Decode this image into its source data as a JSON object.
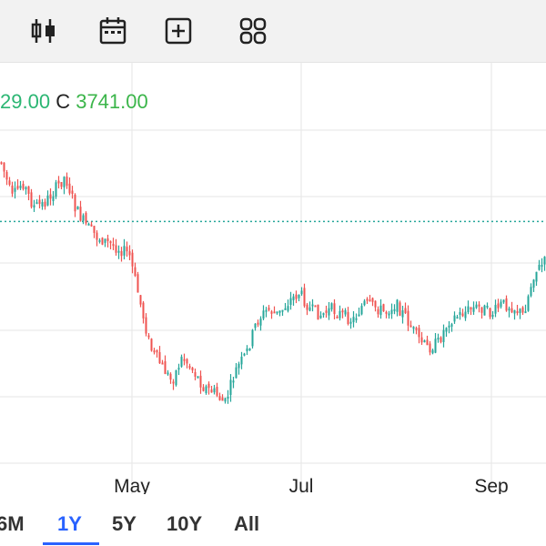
{
  "toolbar": {
    "icons": [
      "candlestick-icon",
      "calendar-icon",
      "add-icon",
      "grid-icon"
    ]
  },
  "ohlc_readout": {
    "low_value": "29.00",
    "close_label": "C",
    "close_value": "3741.00"
  },
  "x_axis_labels": [
    "May",
    "Jul",
    "Sep"
  ],
  "period_tabs": [
    "6M",
    "1Y",
    "5Y",
    "10Y",
    "All"
  ],
  "selected_period": "1Y",
  "colors": {
    "up": "#26a69a",
    "down": "#ef5350",
    "accent": "#2962ff",
    "reference_line": "#26a69a",
    "grid": "#e6e6e6"
  },
  "chart_data": {
    "type": "candlestick",
    "x_ticks": [
      "May",
      "Jul",
      "Sep"
    ],
    "reference_level": 0.28,
    "price_trend": [
      0.05,
      0.18,
      0.12,
      0.21,
      0.2,
      0.15,
      0.1,
      0.22,
      0.28,
      0.32,
      0.34,
      0.36,
      0.38,
      0.55,
      0.72,
      0.78,
      0.84,
      0.75,
      0.8,
      0.86,
      0.88,
      0.92,
      0.8,
      0.74,
      0.62,
      0.58,
      0.6,
      0.55,
      0.52,
      0.58,
      0.6,
      0.58,
      0.6,
      0.62,
      0.56,
      0.57,
      0.59,
      0.56,
      0.61,
      0.68,
      0.72,
      0.7,
      0.62,
      0.6,
      0.58,
      0.57,
      0.6,
      0.56,
      0.57,
      0.6,
      0.45,
      0.41
    ]
  }
}
